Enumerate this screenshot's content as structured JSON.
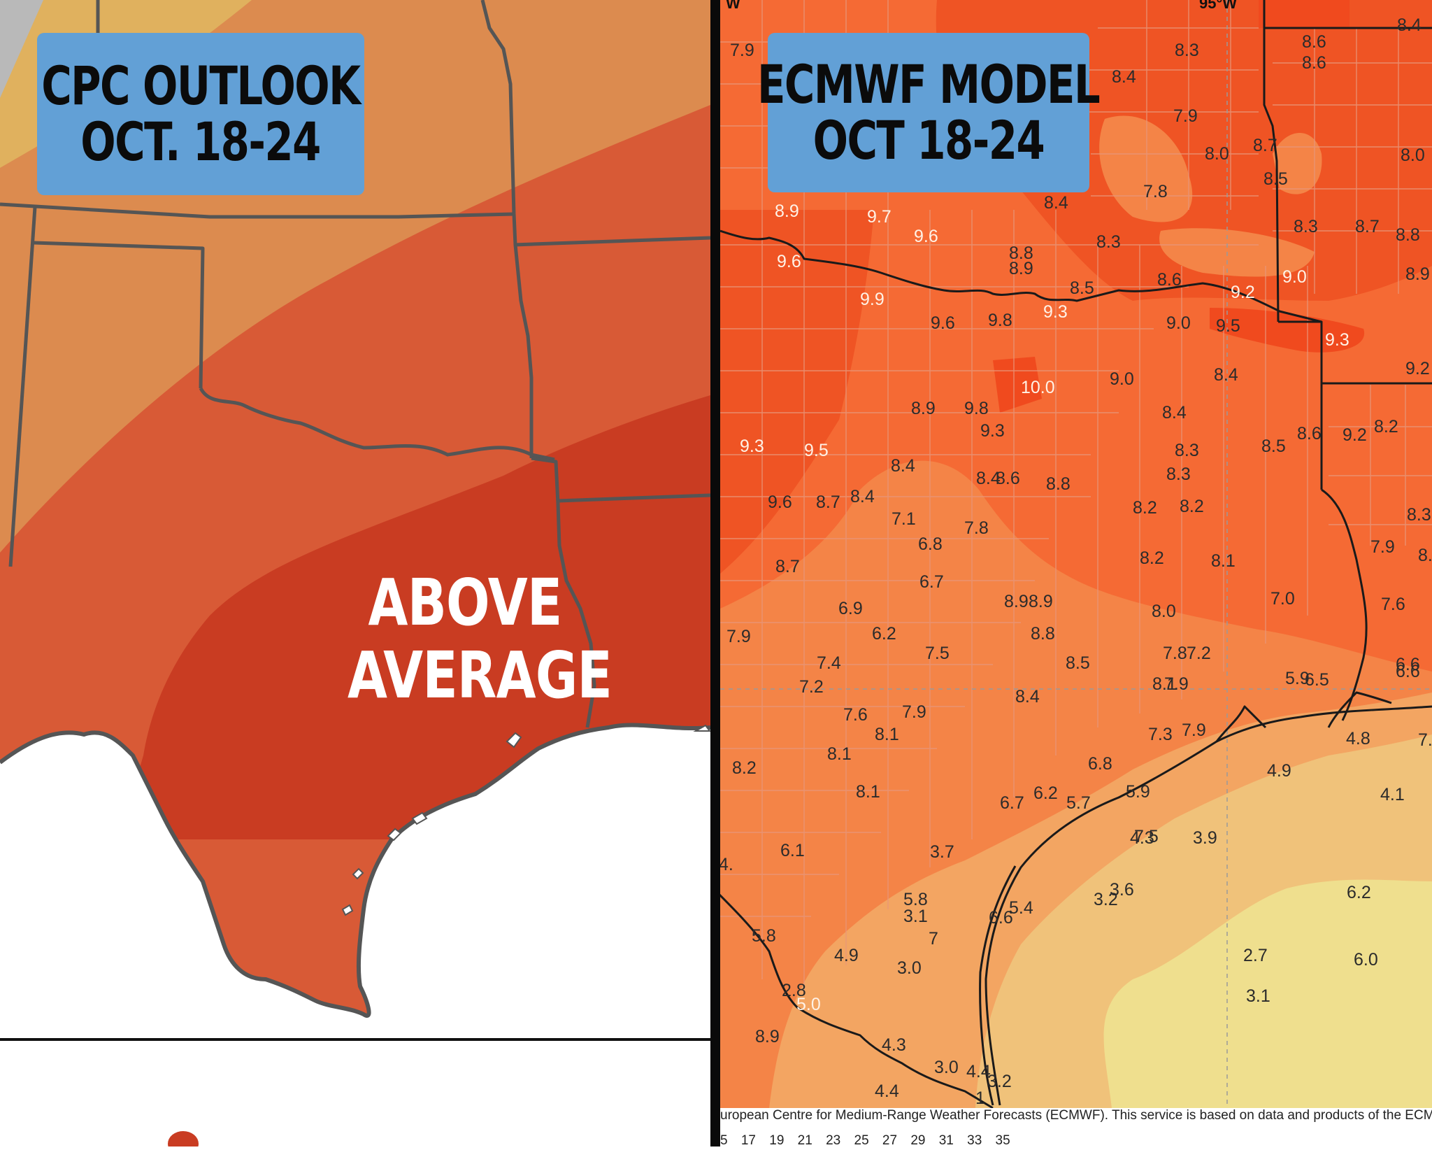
{
  "left_panel": {
    "title_lines": [
      "CPC OUTLOOK",
      "OCT. 18-24"
    ],
    "category_label_lines": [
      "ABOVE",
      "AVERAGE"
    ],
    "colors": {
      "gray": "#b9b9b9",
      "light_tan": "#e0b15e",
      "tan_orange": "#dc8b4f",
      "orange": "#d85a36",
      "red_orange": "#c93c22",
      "state_lines": "#555555"
    }
  },
  "right_panel": {
    "title_lines": [
      "ECMWF MODEL",
      "OCT 18-24"
    ],
    "longitude_labels": [
      "W",
      "95°W"
    ],
    "credit": "uropean Centre for Medium-Range Weather Forecasts (ECMWF). This service is based on data and products of the ECMWF",
    "scale_ticks": "5  17  19  21  23  25  27  29  31  33  35",
    "colors": {
      "deep": "#f04a1e",
      "dark": "#ef5424",
      "mid": "#f56a34",
      "light": "#f48447",
      "paler": "#f3a562",
      "pale": "#f0c27a",
      "palest": "#efdf8e",
      "county_lines": "#e89a78",
      "state_lines": "#1a1a1a"
    },
    "values": [
      {
        "v": "7.9"
      },
      {
        "v": "8.3"
      },
      {
        "v": "8.6"
      },
      {
        "v": "8.4"
      },
      {
        "v": "8.6"
      },
      {
        "v": "8.4"
      },
      {
        "v": "7.9"
      },
      {
        "v": "8.0"
      },
      {
        "v": "8.7"
      },
      {
        "v": "8.5"
      },
      {
        "v": "8.0"
      },
      {
        "v": "7.8"
      },
      {
        "v": "8.4"
      },
      {
        "v": "8.9"
      },
      {
        "v": "9.7"
      },
      {
        "v": "9.6"
      },
      {
        "v": "8.3"
      },
      {
        "v": "8.3"
      },
      {
        "v": "8.7"
      },
      {
        "v": "8.8"
      },
      {
        "v": "9.6"
      },
      {
        "v": "8.8"
      },
      {
        "v": "8.9"
      },
      {
        "v": "8.5"
      },
      {
        "v": "8.6"
      },
      {
        "v": "9.2"
      },
      {
        "v": "9.0"
      },
      {
        "v": "8.9"
      },
      {
        "v": "9.9"
      },
      {
        "v": "9.3"
      },
      {
        "v": "9.6"
      },
      {
        "v": "9.8"
      },
      {
        "v": "9.0"
      },
      {
        "v": "9.5"
      },
      {
        "v": "9.3"
      },
      {
        "v": "8.4"
      },
      {
        "v": "10.0"
      },
      {
        "v": "9.0"
      },
      {
        "v": "9.2"
      },
      {
        "v": "8.9"
      },
      {
        "v": "9.8"
      },
      {
        "v": "8.4"
      },
      {
        "v": "9.3"
      },
      {
        "v": "8.2"
      },
      {
        "v": "9.3"
      },
      {
        "v": "9.5"
      },
      {
        "v": "8.6"
      },
      {
        "v": "9.2"
      },
      {
        "v": "8.3"
      },
      {
        "v": "8.5"
      },
      {
        "v": "8.4"
      },
      {
        "v": "8.3"
      },
      {
        "v": "8.4"
      },
      {
        "v": "8.6"
      },
      {
        "v": "8.8"
      },
      {
        "v": "9.6"
      },
      {
        "v": "8.7"
      },
      {
        "v": "8.4"
      },
      {
        "v": "8.2"
      },
      {
        "v": "8.2"
      },
      {
        "v": "8.3"
      },
      {
        "v": "7.1"
      },
      {
        "v": "7.8"
      },
      {
        "v": "6.8"
      },
      {
        "v": "7.9"
      },
      {
        "v": "8.2"
      },
      {
        "v": "8.1"
      },
      {
        "v": "8.7"
      },
      {
        "v": "6.7"
      },
      {
        "v": "7.0"
      },
      {
        "v": "7.6"
      },
      {
        "v": "8.9"
      },
      {
        "v": "8.9"
      },
      {
        "v": "8.0"
      },
      {
        "v": "6.9"
      },
      {
        "v": "7.9"
      },
      {
        "v": "6.2"
      },
      {
        "v": "8.8"
      },
      {
        "v": "7.5"
      },
      {
        "v": "7.8"
      },
      {
        "v": "7.2"
      },
      {
        "v": "7.4"
      },
      {
        "v": "8.5"
      },
      {
        "v": "6.6"
      },
      {
        "v": "6.6"
      },
      {
        "v": "5.9"
      },
      {
        "v": "6.5"
      },
      {
        "v": "7.2"
      },
      {
        "v": "8.1"
      },
      {
        "v": "7.9"
      },
      {
        "v": "8.4"
      },
      {
        "v": "7.6"
      },
      {
        "v": "7.9"
      },
      {
        "v": "8.1"
      },
      {
        "v": "7.3"
      },
      {
        "v": "7.9"
      },
      {
        "v": "4.8"
      },
      {
        "v": "8.1"
      },
      {
        "v": "4.9"
      },
      {
        "v": "8.2"
      },
      {
        "v": "6.8"
      },
      {
        "v": "8.1"
      },
      {
        "v": "5.9"
      },
      {
        "v": "4.1"
      },
      {
        "v": "6.7"
      },
      {
        "v": "6.2"
      },
      {
        "v": "5.7"
      },
      {
        "v": "4.3"
      },
      {
        "v": "3.9"
      },
      {
        "v": "7.5"
      },
      {
        "v": "6.1"
      },
      {
        "v": "3.7"
      },
      {
        "v": "3.6"
      },
      {
        "v": "3.2"
      },
      {
        "v": "6.2"
      },
      {
        "v": "5.8"
      },
      {
        "v": "3.1"
      },
      {
        "v": "5.4"
      },
      {
        "v": "7"
      },
      {
        "v": "6.6"
      },
      {
        "v": "5.8"
      },
      {
        "v": "4.9"
      },
      {
        "v": "3.0"
      },
      {
        "v": "2.7"
      },
      {
        "v": "6.0"
      },
      {
        "v": "2.8"
      },
      {
        "v": "3.1"
      },
      {
        "v": "5.0"
      },
      {
        "v": "4.3"
      },
      {
        "v": "3.0"
      },
      {
        "v": "4.4"
      },
      {
        "v": "4.4"
      },
      {
        "v": "3.2"
      },
      {
        "v": "1"
      },
      {
        "v": "4."
      },
      {
        "v": "7."
      },
      {
        "v": "8.8"
      },
      {
        "v": "8.9"
      }
    ]
  }
}
